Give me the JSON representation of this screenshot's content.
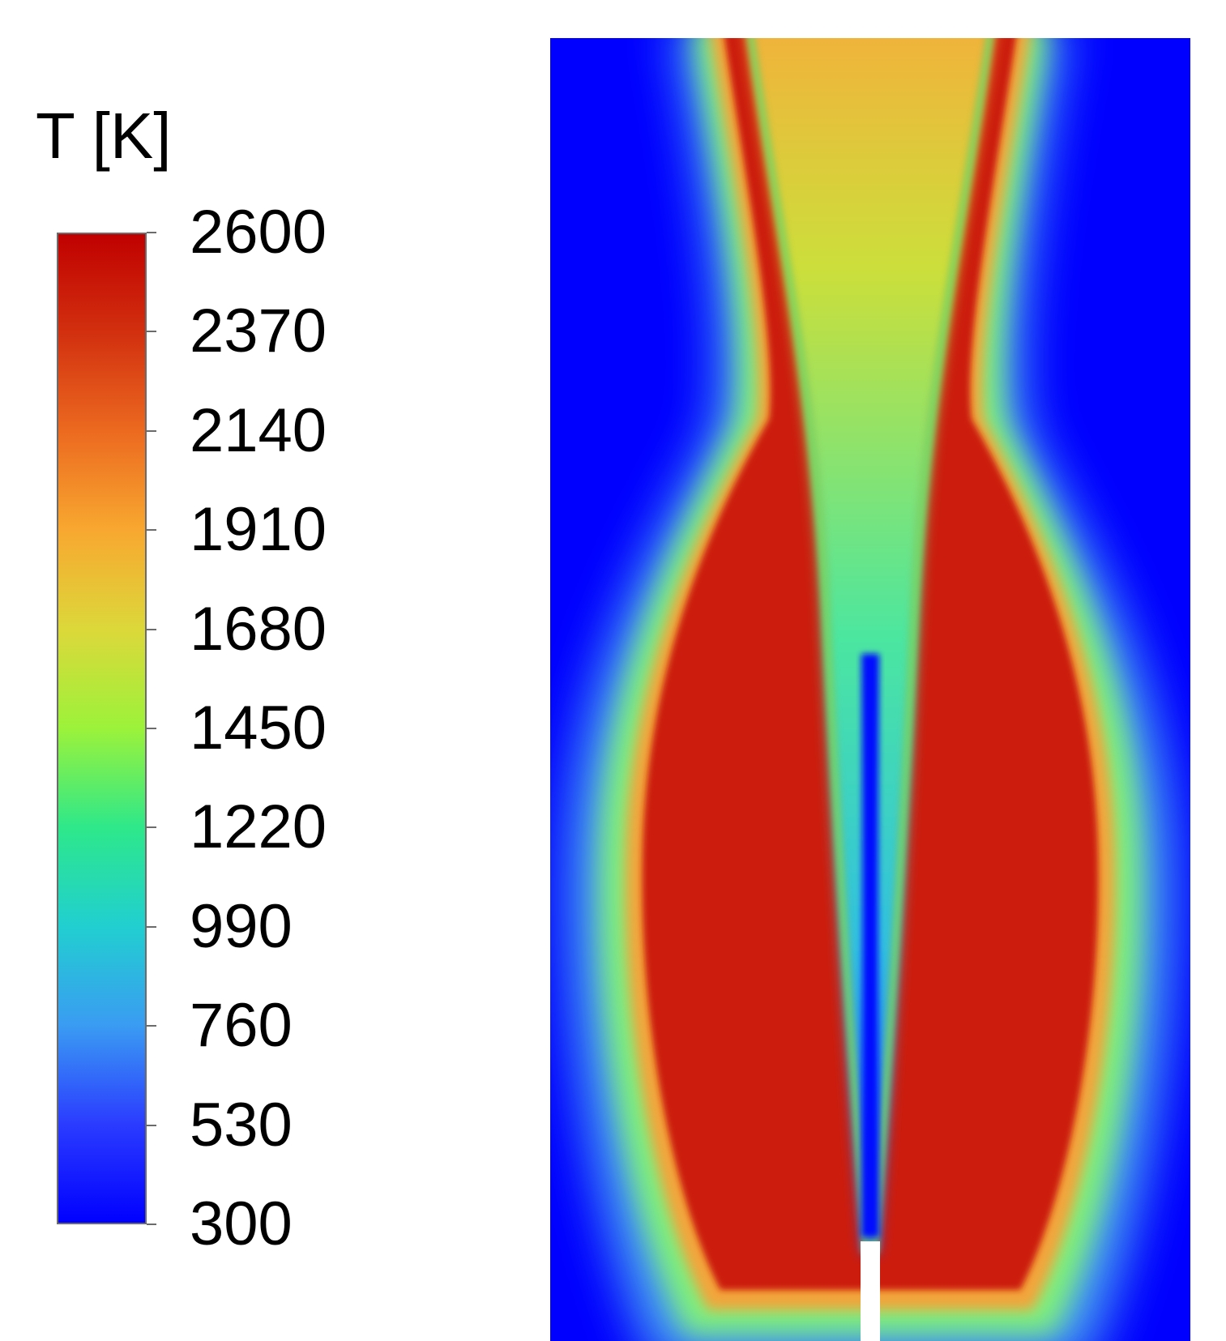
{
  "chart_data": {
    "type": "heatmap",
    "colorbar": {
      "title": "T [K]",
      "min": 300,
      "max": 2600,
      "ticks": [
        2600,
        2370,
        2140,
        1910,
        1680,
        1450,
        1220,
        990,
        760,
        530,
        300
      ],
      "tick_labels": [
        "2600",
        "2370",
        "2140",
        "1910",
        "1680",
        "1450",
        "1220",
        "990",
        "760",
        "530",
        "300"
      ],
      "colormap": [
        {
          "value": 300,
          "color": "#0000ff"
        },
        {
          "value": 530,
          "color": "#2b3cff"
        },
        {
          "value": 760,
          "color": "#3a9cf2"
        },
        {
          "value": 990,
          "color": "#21cfd0"
        },
        {
          "value": 1220,
          "color": "#2ee88a"
        },
        {
          "value": 1450,
          "color": "#9cf23a"
        },
        {
          "value": 1680,
          "color": "#dcd83a"
        },
        {
          "value": 1910,
          "color": "#f8a830"
        },
        {
          "value": 2140,
          "color": "#ec6a20"
        },
        {
          "value": 2370,
          "color": "#d2300f"
        },
        {
          "value": 2600,
          "color": "#c00000"
        }
      ]
    },
    "field": {
      "description_colors": {
        "ambient": "#0000ff",
        "core": "#b6eb37",
        "flame": "#cc1d08"
      }
    }
  }
}
